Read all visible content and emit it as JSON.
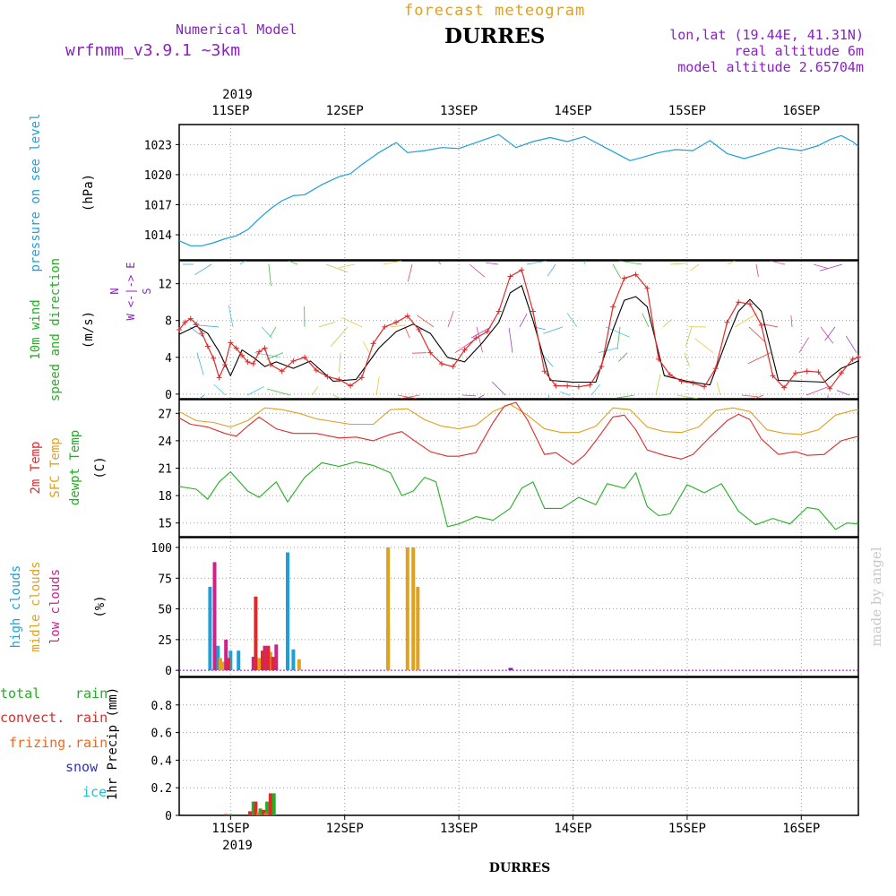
{
  "header": {
    "model_label": "Numerical Model",
    "model_name": "wrfnmm_v3.9.1   ~3km",
    "forecast_title": "forecast meteogram",
    "station": "DURRES",
    "lonlat": "lon,lat (19.44E, 41.31N)",
    "real_altitude": "real altitude 6m",
    "model_altitude": "model altitude  2.65704m",
    "year_top": "2019",
    "year_bottom": "2019",
    "credit": "made by angel",
    "bottom_label": "DURRES"
  },
  "colors": {
    "pressure": "#1e9fd8",
    "wind_speed": "#e02a2a",
    "wind_mean": "#000000",
    "t2m": "#e02a2a",
    "sfc": "#e0a020",
    "dewpt": "#22b022",
    "high_clouds": "#1e9fd8",
    "mid_clouds": "#e0a020",
    "low_clouds": "#d0208a",
    "total_rain": "#22b022",
    "convect_rain": "#e02a2a",
    "frizing_rain": "#f06820",
    "snow": "#3030c0",
    "ice": "#1ec0d8",
    "purple": "#8c1ec8"
  },
  "chart_data": [
    {
      "type": "line",
      "id": "pressure",
      "ylabel": "pressure on see level",
      "unit": "(hPa)",
      "ylim": [
        1011.5,
        1025.0
      ],
      "yticks": [
        1014,
        1017,
        1020,
        1023
      ],
      "x": [
        10.55,
        10.65,
        10.75,
        10.85,
        10.95,
        11.05,
        11.15,
        11.25,
        11.35,
        11.45,
        11.55,
        11.65,
        11.8,
        11.95,
        12.05,
        12.15,
        12.3,
        12.45,
        12.55,
        12.7,
        12.85,
        13.0,
        13.2,
        13.35,
        13.5,
        13.65,
        13.8,
        13.95,
        14.1,
        14.3,
        14.5,
        14.6,
        14.75,
        14.9,
        15.05,
        15.2,
        15.35,
        15.5,
        15.65,
        15.8,
        16.0,
        16.15,
        16.25,
        16.35,
        16.45,
        16.5
      ],
      "y": [
        1013.4,
        1012.9,
        1012.9,
        1013.2,
        1013.6,
        1013.9,
        1014.5,
        1015.6,
        1016.6,
        1017.4,
        1017.9,
        1018.0,
        1019.0,
        1019.8,
        1020.1,
        1021.0,
        1022.2,
        1023.2,
        1022.2,
        1022.4,
        1022.7,
        1022.6,
        1023.4,
        1024.0,
        1022.7,
        1023.3,
        1023.7,
        1023.3,
        1023.8,
        1022.6,
        1021.4,
        1021.7,
        1022.2,
        1022.5,
        1022.4,
        1023.4,
        1022.1,
        1021.6,
        1022.1,
        1022.7,
        1022.4,
        1022.9,
        1023.5,
        1023.9,
        1023.3,
        1022.8
      ],
      "xlim": [
        10.55,
        16.5
      ]
    },
    {
      "type": "line",
      "id": "wind",
      "ylabel": "10m wind speed and direction",
      "unit": "(m/s)",
      "ylim": [
        -0.5,
        14.5
      ],
      "yticks": [
        0,
        4,
        8,
        12
      ],
      "compass": [
        "N",
        "W <-|-> E",
        "S"
      ],
      "series": [
        {
          "x": [
            10.55,
            10.6,
            10.65,
            10.7,
            10.75,
            10.8,
            10.85,
            10.9,
            10.95,
            11.0,
            11.05,
            11.1,
            11.15,
            11.2,
            11.25,
            11.3,
            11.35,
            11.45,
            11.55,
            11.65,
            11.75,
            11.85,
            11.95,
            12.05,
            12.15,
            12.25,
            12.35,
            12.45,
            12.55,
            12.65,
            12.75,
            12.85,
            12.95,
            13.05,
            13.15,
            13.25,
            13.35,
            13.45,
            13.55,
            13.65,
            13.75,
            13.85,
            13.95,
            14.05,
            14.15,
            14.25,
            14.35,
            14.45,
            14.55,
            14.65,
            14.75,
            14.85,
            14.95,
            15.05,
            15.15,
            15.25,
            15.35,
            15.45,
            15.55,
            15.65,
            15.75,
            15.85,
            15.95,
            16.05,
            16.15,
            16.25,
            16.35,
            16.45,
            16.5
          ],
          "y": [
            7.0,
            7.8,
            8.2,
            7.6,
            6.6,
            5.2,
            3.9,
            1.8,
            3.2,
            5.6,
            5.0,
            4.2,
            3.5,
            3.3,
            4.6,
            5.0,
            3.2,
            2.5,
            3.6,
            4.0,
            2.6,
            1.9,
            1.6,
            0.9,
            1.8,
            5.5,
            7.3,
            7.8,
            8.5,
            7.0,
            4.5,
            3.3,
            3.0,
            4.8,
            6.1,
            6.8,
            9.0,
            12.8,
            13.5,
            9.0,
            2.5,
            0.9,
            0.9,
            0.8,
            1.0,
            3.0,
            9.5,
            12.6,
            13.0,
            11.5,
            3.8,
            2.1,
            1.4,
            1.2,
            0.8,
            2.8,
            7.8,
            10.0,
            9.8,
            7.5,
            2.0,
            0.7,
            2.3,
            2.5,
            2.4,
            0.6,
            2.3,
            3.8,
            4.0
          ]
        },
        {
          "x": [
            10.55,
            10.7,
            10.8,
            10.9,
            11.0,
            11.1,
            11.2,
            11.3,
            11.4,
            11.55,
            11.7,
            11.9,
            12.1,
            12.3,
            12.45,
            12.6,
            12.75,
            12.9,
            13.05,
            13.2,
            13.35,
            13.45,
            13.55,
            13.65,
            13.8,
            14.0,
            14.2,
            14.35,
            14.45,
            14.55,
            14.65,
            14.8,
            15.0,
            15.2,
            15.35,
            15.45,
            15.55,
            15.65,
            15.8,
            16.0,
            16.2,
            16.35,
            16.5
          ],
          "y": [
            6.5,
            7.4,
            6.6,
            4.6,
            2.0,
            4.8,
            4.0,
            3.0,
            3.5,
            2.8,
            3.6,
            1.4,
            1.6,
            5.0,
            6.8,
            7.6,
            6.6,
            4.0,
            3.5,
            5.5,
            7.8,
            11.0,
            11.8,
            8.0,
            1.5,
            1.3,
            1.3,
            7.0,
            10.2,
            10.6,
            9.5,
            2.0,
            1.4,
            1.0,
            6.0,
            9.0,
            10.3,
            9.0,
            1.5,
            1.4,
            1.3,
            2.8,
            3.6
          ]
        }
      ]
    },
    {
      "type": "line",
      "id": "temperature",
      "ylabel": [
        "2m Temp",
        "SFC Temp",
        "dewpt Temp"
      ],
      "unit": "(C)",
      "ylim": [
        13.5,
        28.5
      ],
      "yticks": [
        15,
        18,
        21,
        24,
        27
      ],
      "series": [
        {
          "name": "2m Temp",
          "x": [
            10.55,
            10.65,
            10.8,
            10.95,
            11.05,
            11.15,
            11.25,
            11.4,
            11.55,
            11.75,
            11.95,
            12.1,
            12.25,
            12.4,
            12.5,
            12.6,
            12.75,
            12.9,
            13.0,
            13.15,
            13.3,
            13.4,
            13.5,
            13.6,
            13.75,
            13.85,
            14.0,
            14.1,
            14.2,
            14.35,
            14.45,
            14.55,
            14.65,
            14.8,
            14.95,
            15.05,
            15.2,
            15.35,
            15.45,
            15.55,
            15.65,
            15.8,
            15.95,
            16.05,
            16.2,
            16.35,
            16.5
          ],
          "y": [
            26.5,
            25.8,
            25.5,
            24.8,
            24.5,
            25.6,
            26.6,
            25.3,
            24.8,
            24.8,
            24.3,
            24.4,
            24.0,
            24.7,
            25.0,
            24.1,
            22.8,
            22.3,
            22.3,
            22.7,
            26.0,
            27.8,
            28.2,
            26.3,
            22.5,
            22.7,
            21.4,
            22.4,
            24.0,
            26.6,
            26.8,
            25.2,
            23.0,
            22.4,
            22.0,
            22.5,
            24.4,
            26.2,
            26.9,
            26.3,
            24.2,
            22.5,
            22.8,
            22.4,
            22.5,
            24.0,
            24.5
          ]
        },
        {
          "name": "SFC Temp",
          "x": [
            10.55,
            10.7,
            10.85,
            11.0,
            11.15,
            11.3,
            11.45,
            11.6,
            11.75,
            11.9,
            12.05,
            12.25,
            12.4,
            12.55,
            12.7,
            12.85,
            13.0,
            13.15,
            13.3,
            13.45,
            13.6,
            13.75,
            13.9,
            14.05,
            14.2,
            14.35,
            14.5,
            14.65,
            14.8,
            14.95,
            15.1,
            15.25,
            15.4,
            15.55,
            15.7,
            15.85,
            16.0,
            16.15,
            16.3,
            16.45,
            16.5
          ],
          "y": [
            27.2,
            26.2,
            26.0,
            25.5,
            26.2,
            27.6,
            27.4,
            27.0,
            26.4,
            26.1,
            25.8,
            25.8,
            27.4,
            27.5,
            26.3,
            25.6,
            25.3,
            25.7,
            27.2,
            28.0,
            26.8,
            25.3,
            24.9,
            24.9,
            25.6,
            27.6,
            27.4,
            25.5,
            25.0,
            24.9,
            25.5,
            27.3,
            27.6,
            27.2,
            25.2,
            24.8,
            24.7,
            25.2,
            26.8,
            27.3,
            27.4
          ]
        },
        {
          "name": "dewpt Temp",
          "x": [
            10.55,
            10.7,
            10.8,
            10.9,
            11.0,
            11.15,
            11.25,
            11.4,
            11.5,
            11.65,
            11.8,
            11.95,
            12.1,
            12.25,
            12.4,
            12.5,
            12.6,
            12.7,
            12.8,
            12.9,
            13.0,
            13.15,
            13.3,
            13.45,
            13.55,
            13.65,
            13.75,
            13.9,
            14.05,
            14.2,
            14.3,
            14.45,
            14.55,
            14.65,
            14.75,
            14.85,
            15.0,
            15.15,
            15.3,
            15.45,
            15.6,
            15.75,
            15.9,
            16.05,
            16.15,
            16.3,
            16.4,
            16.5
          ],
          "y": [
            19.0,
            18.7,
            17.6,
            19.5,
            20.6,
            18.5,
            17.8,
            19.5,
            17.3,
            20.0,
            21.6,
            21.2,
            21.7,
            21.3,
            20.5,
            18.0,
            18.5,
            20.0,
            19.5,
            14.6,
            14.9,
            15.7,
            15.3,
            16.6,
            18.8,
            19.5,
            16.6,
            16.6,
            17.8,
            17.0,
            19.3,
            18.8,
            20.5,
            16.8,
            15.8,
            16.0,
            19.2,
            18.3,
            19.3,
            16.3,
            14.8,
            15.5,
            14.9,
            16.7,
            16.5,
            14.3,
            15.0,
            14.9
          ]
        }
      ]
    },
    {
      "type": "bar",
      "id": "clouds",
      "ylabel": [
        "high clouds",
        "midle clouds",
        "low clouds"
      ],
      "unit": "(%)",
      "ylim": [
        -5,
        108
      ],
      "yticks": [
        0,
        25,
        50,
        75,
        100
      ],
      "series": [
        {
          "name": "high clouds",
          "x": [
            10.82,
            10.89,
            11.0,
            11.07,
            11.5,
            11.55,
            12.38
          ],
          "y": [
            68,
            20,
            16,
            16,
            96,
            17,
            34
          ]
        },
        {
          "name": "midle clouds",
          "x": [
            10.91,
            10.94,
            11.25,
            11.35,
            11.6,
            12.38,
            12.55,
            12.6,
            12.64
          ],
          "y": [
            10,
            7,
            10,
            15,
            9,
            100,
            100,
            100,
            68
          ]
        },
        {
          "name": "low clouds",
          "x": [
            10.86,
            10.96,
            11.2,
            11.3,
            11.4
          ],
          "y": [
            88,
            25,
            11,
            20,
            21
          ]
        },
        {
          "name": "convect",
          "x": [
            10.98,
            11.22,
            11.28,
            11.33,
            11.37
          ],
          "y": [
            10,
            60,
            16,
            20,
            11
          ]
        }
      ]
    },
    {
      "type": "bar",
      "id": "precip",
      "ylabel": "1hr Precip (mm)",
      "legend": [
        "total",
        "rain",
        "convect.",
        "rain",
        "frizing.",
        "rain",
        "snow",
        "ice"
      ],
      "ylim": [
        0,
        1.0
      ],
      "yticks": [
        0,
        0.2,
        0.4,
        0.6,
        0.8
      ],
      "ytick_labels": [
        "0",
        "0.2",
        "0.4",
        "0.6",
        "0.8"
      ],
      "series": [
        {
          "name": "total rain",
          "x": [
            11.0,
            11.2,
            11.26,
            11.32,
            11.38
          ],
          "y": [
            0.01,
            0.1,
            0.05,
            0.1,
            0.16
          ]
        },
        {
          "name": "convect. rain",
          "x": [
            10.96,
            11.17,
            11.22,
            11.29,
            11.35
          ],
          "y": [
            0.01,
            0.03,
            0.1,
            0.04,
            0.16
          ]
        },
        {
          "name": "frizing. rain",
          "x": [
            11.24,
            11.31
          ],
          "y": [
            0.02,
            0.02
          ]
        }
      ]
    }
  ],
  "xaxis": {
    "xlim": [
      10.55,
      16.5
    ],
    "ticks": [
      11,
      12,
      13,
      14,
      15,
      16
    ],
    "tick_labels_top": [
      "11SEP",
      "12SEP",
      "13SEP",
      "14SEP",
      "15SEP",
      "16SEP"
    ],
    "tick_labels_bottom": [
      "11SEP",
      "12SEP",
      "13SEP",
      "14SEP",
      "15SEP",
      "16SEP"
    ]
  }
}
